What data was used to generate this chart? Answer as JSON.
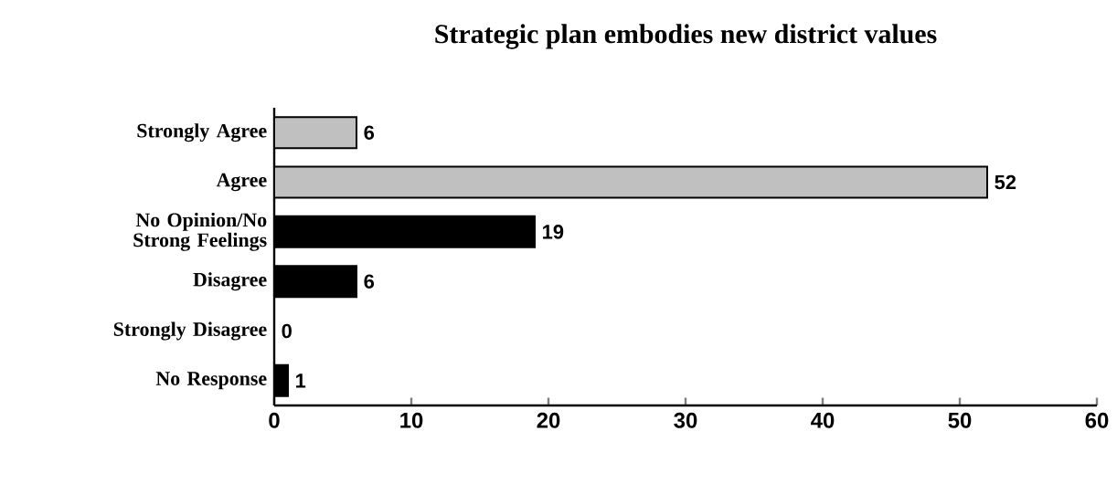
{
  "chart_data": {
    "type": "bar",
    "orientation": "horizontal",
    "title": "Strategic plan embodies new district values",
    "categories": [
      "Strongly Agree",
      "Agree",
      "No Opinion/No Strong Feelings",
      "Disagree",
      "Strongly Disagree",
      "No Response"
    ],
    "values": [
      6,
      52,
      19,
      6,
      0,
      1
    ],
    "colors": [
      "#c0c0c0",
      "#c0c0c0",
      "#000000",
      "#000000",
      "#000000",
      "#000000"
    ],
    "xlim": [
      0,
      60
    ],
    "xticks": [
      0,
      10,
      20,
      30,
      40,
      50,
      60
    ],
    "data_labels": true
  }
}
